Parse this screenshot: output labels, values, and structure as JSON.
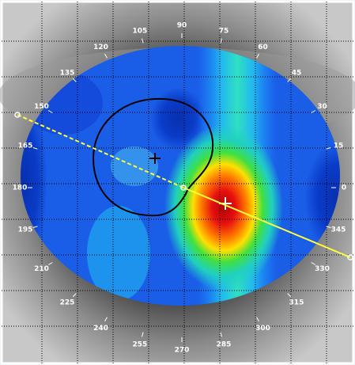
{
  "angle_labels": [
    "0",
    "15",
    "30",
    "45",
    "60",
    "75",
    "90",
    "105",
    "120",
    "135",
    "150",
    "165",
    "180",
    "195",
    "210",
    "225",
    "240",
    "255",
    "270",
    "285",
    "300",
    "315",
    "330",
    "345"
  ]
}
